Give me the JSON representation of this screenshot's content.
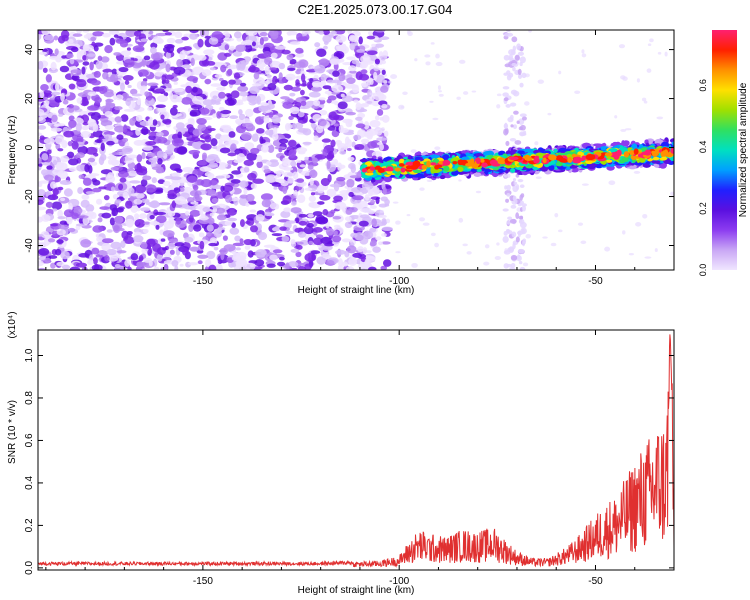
{
  "chart_data": [
    {
      "type": "heatmap",
      "title": "C2E1.2025.073.00.17.G04",
      "xlabel": "Height of straight line (km)",
      "ylabel": "Frequency (Hz)",
      "xlim": [
        -192,
        -30
      ],
      "ylim": [
        -50,
        48
      ],
      "xticks": [
        -150,
        -100,
        -50
      ],
      "yticks": [
        -40,
        -20,
        0,
        20,
        40
      ],
      "colorbar": {
        "label": "Normalized spectral amplitude",
        "range": [
          0,
          0.78
        ],
        "ticks": [
          0.0,
          0.2,
          0.4,
          0.6
        ],
        "colors": [
          "#f0e6ff",
          "#c9a7f5",
          "#8c3cf0",
          "#5a10e0",
          "#2020ff",
          "#00a0ff",
          "#00e0c0",
          "#30e060",
          "#a0e000",
          "#ffe000",
          "#ff9000",
          "#ff2000",
          "#ff2070"
        ]
      },
      "regions": [
        {
          "name": "broadband noise",
          "x": [
            -192,
            -109
          ],
          "y": [
            -50,
            48
          ],
          "amplitude": 0.08
        },
        {
          "name": "signal track",
          "x": [
            -109,
            -30
          ],
          "center_y": [
            -9,
            -2
          ],
          "halfwidth_hz": 5,
          "amplitude": [
            0.2,
            0.78
          ]
        },
        {
          "name": "vertical stripe",
          "x": [
            -73,
            -68
          ],
          "y": [
            -50,
            48
          ],
          "amplitude": 0.05
        }
      ]
    },
    {
      "type": "line",
      "xlabel": "Height of straight line (km)",
      "ylabel": "SNR (10 * v/v)",
      "scale_note": "(x10⁴)",
      "xlim": [
        -192,
        -30
      ],
      "ylim": [
        -0.01,
        1.12
      ],
      "xticks": [
        -150,
        -100,
        -50
      ],
      "yticks": [
        0.0,
        0.2,
        0.4,
        0.6,
        0.8,
        1.0
      ],
      "series": [
        {
          "name": "SNR",
          "color": "#e03030",
          "x": [
            -192,
            -180,
            -160,
            -140,
            -120,
            -112,
            -105,
            -100,
            -98,
            -95,
            -92,
            -88,
            -84,
            -80,
            -76,
            -73,
            -70,
            -66,
            -62,
            -58,
            -55,
            -52,
            -50,
            -48,
            -45,
            -42,
            -40,
            -38,
            -36,
            -34,
            -32,
            -31,
            -30.5,
            -30
          ],
          "values": [
            0.02,
            0.02,
            0.02,
            0.02,
            0.02,
            0.025,
            0.03,
            0.05,
            0.1,
            0.16,
            0.14,
            0.13,
            0.16,
            0.15,
            0.17,
            0.12,
            0.07,
            0.04,
            0.04,
            0.08,
            0.12,
            0.18,
            0.22,
            0.26,
            0.3,
            0.38,
            0.45,
            0.5,
            0.55,
            0.6,
            0.62,
            1.12,
            0.8,
            0.3
          ]
        }
      ]
    }
  ]
}
